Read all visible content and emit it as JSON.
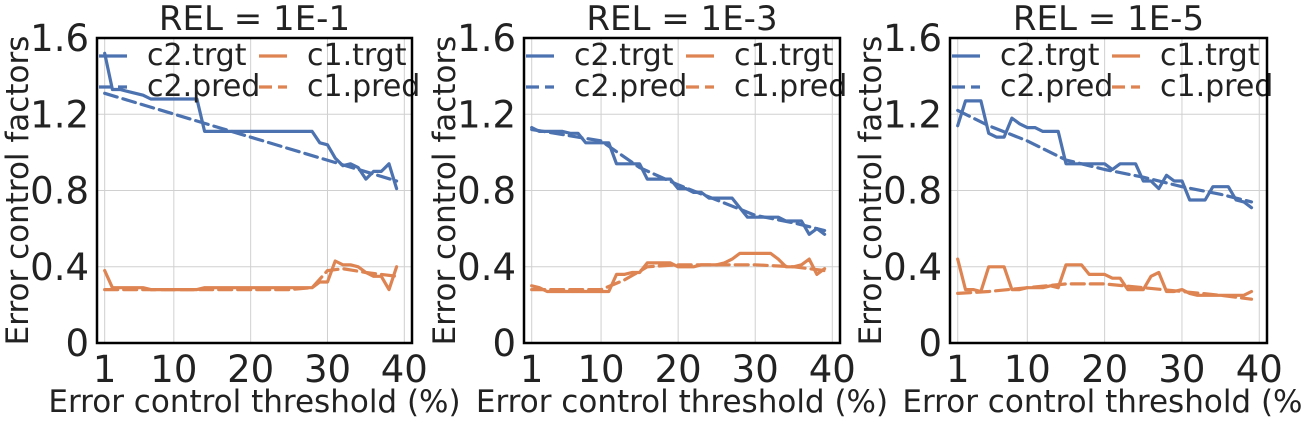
{
  "figure": {
    "ylabel": "Error control factors",
    "xlabel": "Error control threshold (%)"
  },
  "chart_data": [
    {
      "type": "line",
      "title": "REL = 1E-1",
      "xlabel": "Error control threshold (%)",
      "ylabel": "Error control factors",
      "xlim": [
        0,
        41
      ],
      "ylim": [
        0,
        1.6
      ],
      "xticks": [
        "1",
        "10",
        "20",
        "30",
        "40"
      ],
      "yticks": [
        "0",
        "0.4",
        "0.8",
        "1.2",
        "1.6"
      ],
      "grid": true,
      "legend": "top, 2 columns",
      "series": [
        {
          "name": "c2.trgt",
          "color": "#4c72b0",
          "style": "solid",
          "x": [
            1,
            2,
            3,
            4,
            5,
            6,
            7,
            8,
            9,
            10,
            11,
            12,
            13,
            14,
            15,
            16,
            17,
            18,
            19,
            20,
            21,
            22,
            23,
            24,
            25,
            26,
            27,
            28,
            29,
            30,
            31,
            32,
            33,
            34,
            35,
            36,
            37,
            38,
            39
          ],
          "y": [
            1.52,
            1.33,
            1.33,
            1.32,
            1.31,
            1.3,
            1.28,
            1.28,
            1.28,
            1.28,
            1.28,
            1.28,
            1.28,
            1.11,
            1.11,
            1.11,
            1.11,
            1.11,
            1.11,
            1.11,
            1.11,
            1.11,
            1.11,
            1.11,
            1.11,
            1.11,
            1.11,
            1.11,
            1.05,
            1.04,
            0.97,
            0.93,
            0.94,
            0.92,
            0.86,
            0.9,
            0.9,
            0.94,
            0.81
          ]
        },
        {
          "name": "c2.pred",
          "color": "#4c72b0",
          "style": "dashed",
          "x": [
            1,
            39
          ],
          "y": [
            1.31,
            0.85
          ]
        },
        {
          "name": "c1.trgt",
          "color": "#dd8452",
          "style": "solid",
          "x": [
            1,
            2,
            3,
            4,
            5,
            6,
            7,
            8,
            9,
            10,
            11,
            12,
            13,
            14,
            15,
            16,
            17,
            18,
            19,
            20,
            21,
            22,
            23,
            24,
            25,
            26,
            27,
            28,
            29,
            30,
            31,
            32,
            33,
            34,
            35,
            36,
            37,
            38,
            39
          ],
          "y": [
            0.38,
            0.29,
            0.29,
            0.29,
            0.29,
            0.29,
            0.28,
            0.28,
            0.28,
            0.28,
            0.28,
            0.28,
            0.28,
            0.29,
            0.29,
            0.29,
            0.29,
            0.29,
            0.29,
            0.29,
            0.29,
            0.29,
            0.29,
            0.29,
            0.29,
            0.29,
            0.29,
            0.29,
            0.32,
            0.32,
            0.43,
            0.41,
            0.41,
            0.4,
            0.37,
            0.35,
            0.35,
            0.28,
            0.4
          ]
        },
        {
          "name": "c1.pred",
          "color": "#dd8452",
          "style": "dashed",
          "x": [
            1,
            5,
            10,
            15,
            20,
            25,
            28,
            30,
            32,
            35,
            39
          ],
          "y": [
            0.28,
            0.28,
            0.28,
            0.28,
            0.28,
            0.28,
            0.29,
            0.38,
            0.39,
            0.37,
            0.35
          ]
        }
      ]
    },
    {
      "type": "line",
      "title": "REL = 1E-3",
      "xlabel": "Error control threshold (%)",
      "ylabel": "Error control factors",
      "xlim": [
        0,
        41
      ],
      "ylim": [
        0,
        1.6
      ],
      "xticks": [
        "1",
        "10",
        "20",
        "30",
        "40"
      ],
      "yticks": [
        "0",
        "0.4",
        "0.8",
        "1.2",
        "1.6"
      ],
      "grid": true,
      "legend": "top, 2 columns",
      "series": [
        {
          "name": "c2.trgt",
          "color": "#4c72b0",
          "style": "solid",
          "x": [
            1,
            2,
            3,
            4,
            5,
            6,
            7,
            8,
            9,
            10,
            11,
            12,
            13,
            14,
            15,
            16,
            17,
            18,
            19,
            20,
            21,
            22,
            23,
            24,
            25,
            26,
            27,
            28,
            29,
            30,
            31,
            32,
            33,
            34,
            35,
            36,
            37,
            38,
            39
          ],
          "y": [
            1.13,
            1.11,
            1.11,
            1.11,
            1.11,
            1.1,
            1.1,
            1.05,
            1.05,
            1.05,
            1.05,
            0.94,
            0.94,
            0.94,
            0.94,
            0.86,
            0.86,
            0.86,
            0.86,
            0.81,
            0.81,
            0.79,
            0.79,
            0.76,
            0.76,
            0.76,
            0.76,
            0.71,
            0.66,
            0.66,
            0.66,
            0.66,
            0.66,
            0.64,
            0.64,
            0.64,
            0.57,
            0.6,
            0.57
          ]
        },
        {
          "name": "c2.pred",
          "color": "#4c72b0",
          "style": "dashed",
          "x": [
            1,
            10,
            15,
            20,
            25,
            30,
            35,
            39
          ],
          "y": [
            1.12,
            1.06,
            0.92,
            0.83,
            0.75,
            0.67,
            0.63,
            0.59
          ]
        },
        {
          "name": "c1.trgt",
          "color": "#dd8452",
          "style": "solid",
          "x": [
            1,
            2,
            3,
            4,
            5,
            6,
            7,
            8,
            9,
            10,
            11,
            12,
            13,
            14,
            15,
            16,
            17,
            18,
            19,
            20,
            21,
            22,
            23,
            24,
            25,
            26,
            27,
            28,
            29,
            30,
            31,
            32,
            33,
            34,
            35,
            36,
            37,
            38,
            39
          ],
          "y": [
            0.3,
            0.29,
            0.27,
            0.27,
            0.27,
            0.27,
            0.27,
            0.27,
            0.27,
            0.27,
            0.27,
            0.36,
            0.36,
            0.37,
            0.37,
            0.42,
            0.42,
            0.42,
            0.42,
            0.4,
            0.4,
            0.4,
            0.41,
            0.41,
            0.41,
            0.42,
            0.44,
            0.47,
            0.47,
            0.47,
            0.47,
            0.47,
            0.44,
            0.4,
            0.4,
            0.41,
            0.44,
            0.36,
            0.39
          ]
        },
        {
          "name": "c1.pred",
          "color": "#dd8452",
          "style": "dashed",
          "x": [
            1,
            5,
            10,
            13,
            16,
            20,
            25,
            30,
            35,
            39
          ],
          "y": [
            0.28,
            0.28,
            0.28,
            0.33,
            0.4,
            0.41,
            0.41,
            0.41,
            0.4,
            0.38
          ]
        }
      ]
    },
    {
      "type": "line",
      "title": "REL = 1E-5",
      "xlabel": "Error control threshold (%)",
      "ylabel": "Error control factors",
      "xlim": [
        0,
        41
      ],
      "ylim": [
        0,
        1.6
      ],
      "xticks": [
        "1",
        "10",
        "20",
        "30",
        "40"
      ],
      "yticks": [
        "0",
        "0.4",
        "0.8",
        "1.2",
        "1.6"
      ],
      "grid": true,
      "legend": "top, 2 columns",
      "series": [
        {
          "name": "c2.trgt",
          "color": "#4c72b0",
          "style": "solid",
          "x": [
            1,
            2,
            3,
            4,
            5,
            6,
            7,
            8,
            9,
            10,
            11,
            12,
            13,
            14,
            15,
            16,
            17,
            18,
            19,
            20,
            21,
            22,
            23,
            24,
            25,
            26,
            27,
            28,
            29,
            30,
            31,
            32,
            33,
            34,
            35,
            36,
            37,
            38,
            39
          ],
          "y": [
            1.14,
            1.27,
            1.27,
            1.27,
            1.1,
            1.08,
            1.08,
            1.18,
            1.15,
            1.13,
            1.13,
            1.11,
            1.11,
            1.11,
            0.94,
            0.94,
            0.94,
            0.94,
            0.94,
            0.94,
            0.91,
            0.94,
            0.94,
            0.94,
            0.85,
            0.85,
            0.81,
            0.88,
            0.85,
            0.85,
            0.75,
            0.75,
            0.75,
            0.82,
            0.82,
            0.82,
            0.75,
            0.74,
            0.71
          ]
        },
        {
          "name": "c2.pred",
          "color": "#4c72b0",
          "style": "dashed",
          "x": [
            1,
            5,
            10,
            15,
            20,
            25,
            30,
            35,
            39
          ],
          "y": [
            1.22,
            1.14,
            1.06,
            0.96,
            0.91,
            0.87,
            0.82,
            0.78,
            0.74
          ]
        },
        {
          "name": "c1.trgt",
          "color": "#dd8452",
          "style": "solid",
          "x": [
            1,
            2,
            3,
            4,
            5,
            6,
            7,
            8,
            9,
            10,
            11,
            12,
            13,
            14,
            15,
            16,
            17,
            18,
            19,
            20,
            21,
            22,
            23,
            24,
            25,
            26,
            27,
            28,
            29,
            30,
            31,
            32,
            33,
            34,
            35,
            36,
            37,
            38,
            39
          ],
          "y": [
            0.44,
            0.28,
            0.28,
            0.27,
            0.4,
            0.4,
            0.4,
            0.28,
            0.28,
            0.29,
            0.29,
            0.29,
            0.3,
            0.29,
            0.41,
            0.41,
            0.41,
            0.36,
            0.36,
            0.36,
            0.34,
            0.34,
            0.28,
            0.28,
            0.28,
            0.35,
            0.37,
            0.27,
            0.27,
            0.28,
            0.26,
            0.25,
            0.25,
            0.25,
            0.25,
            0.25,
            0.25,
            0.25,
            0.27
          ]
        },
        {
          "name": "c1.pred",
          "color": "#dd8452",
          "style": "dashed",
          "x": [
            1,
            5,
            10,
            15,
            20,
            25,
            30,
            35,
            39
          ],
          "y": [
            0.26,
            0.27,
            0.29,
            0.31,
            0.31,
            0.29,
            0.27,
            0.25,
            0.23
          ]
        }
      ]
    }
  ]
}
